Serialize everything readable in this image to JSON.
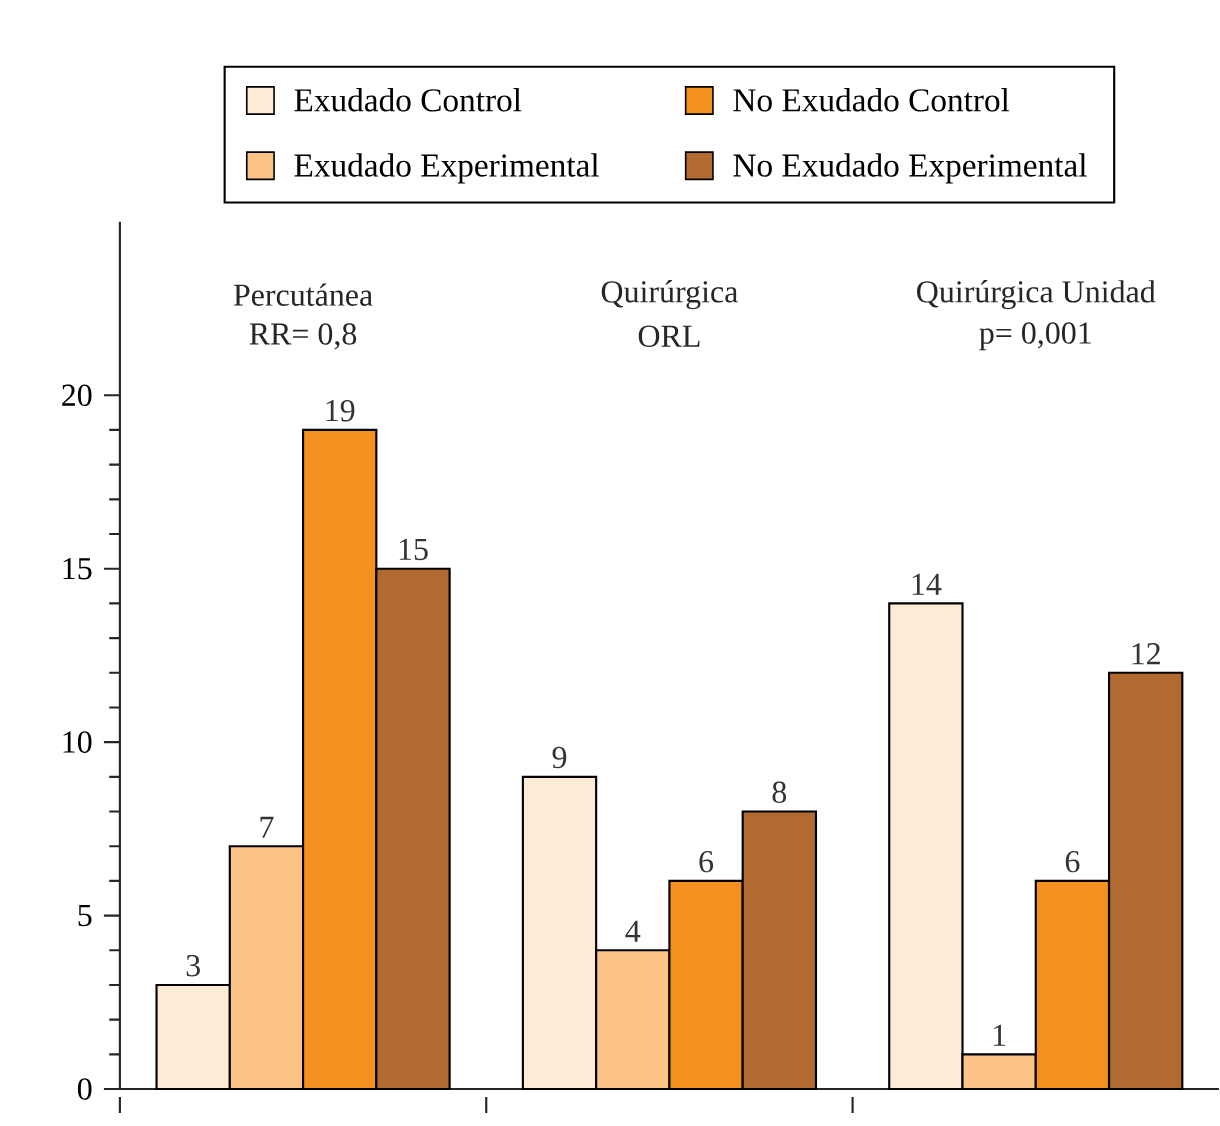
{
  "chart_data": {
    "type": "bar",
    "categories": [
      "Percutánea",
      "Quirúrgica",
      "Quirúrgica Unidad"
    ],
    "annotations": [
      "RR= 0,8",
      "ORL",
      "p= 0,001"
    ],
    "series": [
      {
        "name": "Exudado Control",
        "color": "#fdebd6",
        "values": [
          3,
          9,
          14
        ]
      },
      {
        "name": "Exudado Experimental",
        "color": "#fbc386",
        "values": [
          7,
          4,
          1
        ]
      },
      {
        "name": "No Exudado Control",
        "color": "#f3901f",
        "values": [
          19,
          6,
          6
        ]
      },
      {
        "name": "No Exudado Experimental",
        "color": "#b06a32",
        "values": [
          15,
          8,
          12
        ]
      }
    ],
    "ylim": [
      0,
      25
    ],
    "yticks": [
      0,
      5,
      10,
      15,
      20
    ],
    "data_labels": true,
    "legend": "top",
    "grid": false
  }
}
